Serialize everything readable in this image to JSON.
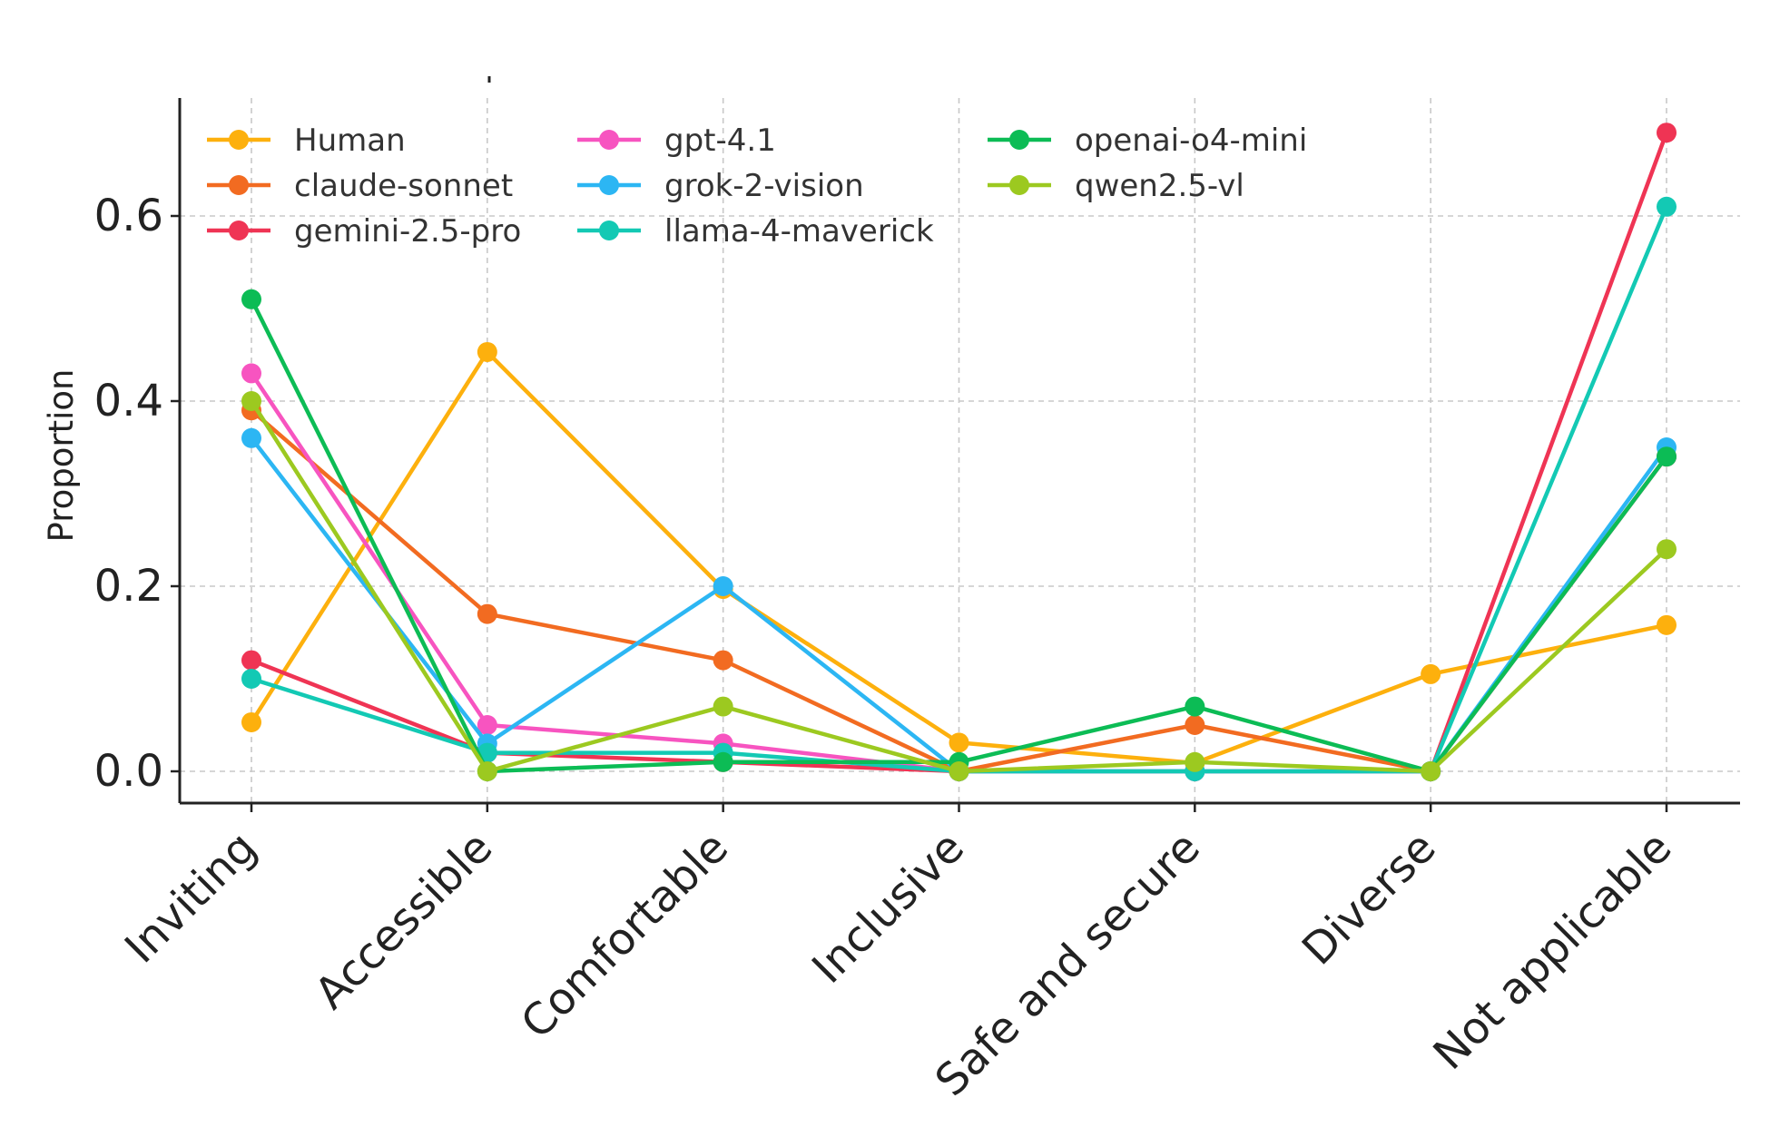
{
  "chart_data": {
    "type": "line",
    "title": "",
    "xlabel": "",
    "ylabel": "Proportion",
    "ylim": [
      -0.033,
      0.72
    ],
    "yticks": [
      0.0,
      0.2,
      0.4,
      0.6
    ],
    "ytick_labels": [
      "0.0",
      "0.2",
      "0.4",
      "0.6"
    ],
    "grid": true,
    "legend_position": "top-left",
    "categories": [
      "Inviting",
      "Accessible",
      "Comfortable",
      "Inclusive",
      "Safe and secure",
      "Diverse",
      "Not applicable"
    ],
    "series": [
      {
        "name": "Human",
        "color": "#FDB00D",
        "values": [
          0.053,
          0.453,
          0.197,
          0.031,
          0.009,
          0.105,
          0.158
        ]
      },
      {
        "name": "claude-sonnet",
        "color": "#F26B21",
        "values": [
          0.39,
          0.17,
          0.12,
          0.0,
          0.05,
          0.0,
          0.34
        ]
      },
      {
        "name": "gemini-2.5-pro",
        "color": "#EF3454",
        "values": [
          0.12,
          0.02,
          0.01,
          0.0,
          0.0,
          0.0,
          0.69
        ]
      },
      {
        "name": "gpt-4.1",
        "color": "#F754C0",
        "values": [
          0.43,
          0.05,
          0.03,
          0.0,
          0.0,
          0.0,
          0.34
        ]
      },
      {
        "name": "grok-2-vision",
        "color": "#2CB6F3",
        "values": [
          0.36,
          0.03,
          0.2,
          0.0,
          0.0,
          0.0,
          0.35
        ]
      },
      {
        "name": "llama-4-maverick",
        "color": "#13C9B4",
        "values": [
          0.1,
          0.02,
          0.02,
          0.0,
          0.0,
          0.0,
          0.61
        ]
      },
      {
        "name": "openai-o4-mini",
        "color": "#0CBC55",
        "values": [
          0.51,
          0.0,
          0.01,
          0.01,
          0.07,
          0.0,
          0.34
        ]
      },
      {
        "name": "qwen2.5-vl",
        "color": "#9CC920",
        "values": [
          0.4,
          0.0,
          0.07,
          0.0,
          0.01,
          0.0,
          0.24
        ]
      }
    ]
  }
}
